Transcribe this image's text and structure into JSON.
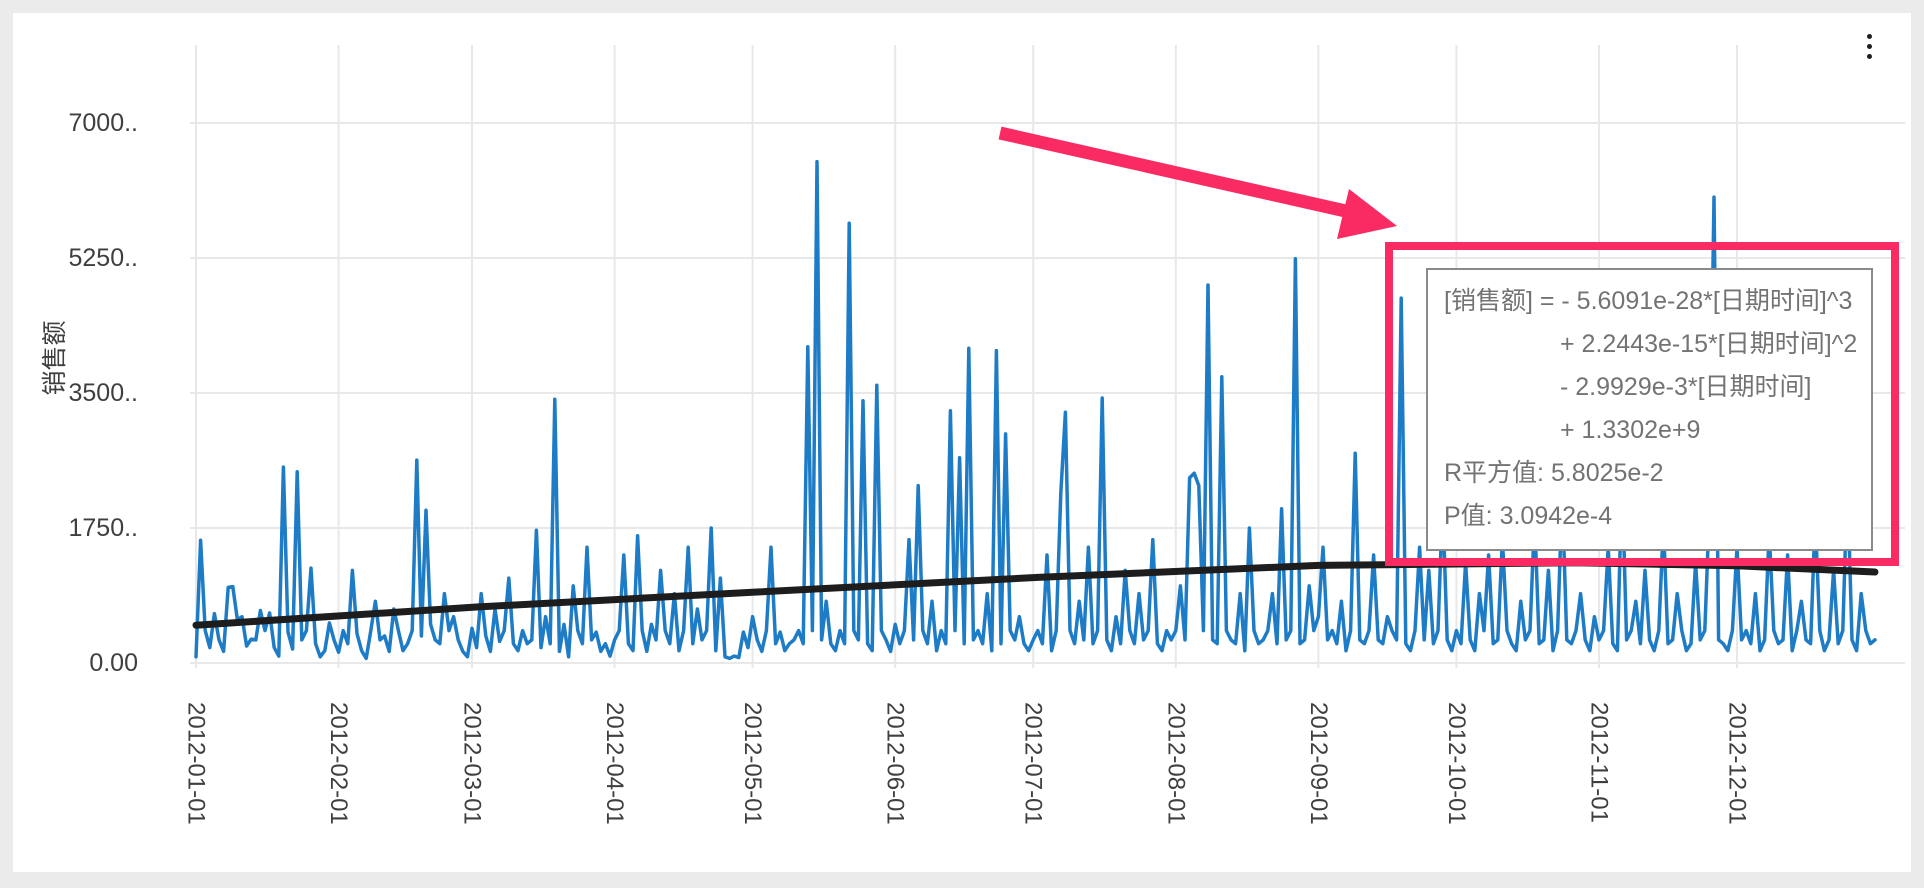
{
  "window": {
    "menu_icon": "kebab-menu-icon"
  },
  "colors": {
    "background": "#ebebeb",
    "card": "#ffffff",
    "grid": "#e8e8e8",
    "axis_text": "#3f3f3f",
    "series_blue": "#1e7cc6",
    "trend_black": "#1d1d1d",
    "callout_pink": "#fa2a62",
    "tooltip_border": "#8a8a8a",
    "tooltip_text": "#737373"
  },
  "chart_data": {
    "type": "line",
    "title": "",
    "xlabel": "",
    "ylabel": "销售额",
    "x_axis": {
      "tick_labels": [
        "2012-01-01",
        "2012-02-01",
        "2012-03-01",
        "2012-04-01",
        "2012-05-01",
        "2012-06-01",
        "2012-07-01",
        "2012-08-01",
        "2012-09-01",
        "2012-10-01",
        "2012-11-01",
        "2012-12-01"
      ],
      "range_days": 366,
      "month_start_day_offsets": [
        0,
        31,
        60,
        91,
        121,
        152,
        182,
        213,
        244,
        274,
        305,
        335
      ]
    },
    "y_axis": {
      "tick_labels": [
        "7000..",
        "5250..",
        "3500..",
        "1750..",
        "0.00"
      ],
      "tick_values": [
        7000,
        5250,
        3500,
        1750,
        0
      ],
      "ylim": [
        0,
        8000
      ],
      "grid": true
    },
    "legend_position": "none",
    "series": [
      {
        "name": "销售额",
        "kind": "daily-line",
        "values": [
          80,
          1590,
          420,
          200,
          640,
          300,
          150,
          980,
          990,
          560,
          600,
          220,
          310,
          300,
          680,
          420,
          650,
          200,
          90,
          2540,
          400,
          180,
          2480,
          300,
          420,
          1230,
          250,
          80,
          160,
          520,
          300,
          140,
          420,
          250,
          1200,
          380,
          160,
          60,
          420,
          800,
          300,
          350,
          150,
          700,
          420,
          160,
          250,
          420,
          2630,
          350,
          1980,
          500,
          300,
          250,
          900,
          420,
          600,
          300,
          150,
          80,
          450,
          200,
          900,
          350,
          150,
          700,
          280,
          420,
          1100,
          250,
          160,
          420,
          250,
          300,
          1720,
          200,
          600,
          250,
          3420,
          150,
          500,
          80,
          1000,
          420,
          250,
          1500,
          300,
          400,
          150,
          250,
          90,
          300,
          420,
          1400,
          250,
          160,
          1650,
          420,
          150,
          500,
          300,
          1200,
          420,
          250,
          900,
          160,
          420,
          1500,
          250,
          700,
          300,
          420,
          1750,
          160,
          1100,
          80,
          60,
          90,
          70,
          400,
          200,
          600,
          300,
          150,
          420,
          1500,
          250,
          400,
          160,
          250,
          300,
          420,
          250,
          4100,
          420,
          6500,
          300,
          800,
          250,
          160,
          420,
          250,
          5700,
          420,
          300,
          3400,
          250,
          160,
          3600,
          420,
          300,
          150,
          500,
          250,
          420,
          1600,
          300,
          2300,
          420,
          250,
          800,
          160,
          420,
          250,
          3270,
          420,
          2660,
          250,
          4080,
          300,
          420,
          250,
          900,
          160,
          4050,
          250,
          2970,
          420,
          300,
          600,
          250,
          160,
          300,
          420,
          250,
          1400,
          160,
          420,
          2200,
          3250,
          420,
          250,
          800,
          300,
          1500,
          250,
          420,
          3435,
          300,
          160,
          600,
          250,
          1200,
          420,
          250,
          900,
          300,
          420,
          1600,
          250,
          160,
          420,
          300,
          420,
          1000,
          300,
          2400,
          2460,
          2300,
          420,
          4900,
          300,
          250,
          3710,
          420,
          300,
          250,
          900,
          160,
          1750,
          420,
          250,
          300,
          420,
          900,
          250,
          2000,
          300,
          420,
          5240,
          250,
          300,
          1000,
          420,
          600,
          1500,
          300,
          420,
          250,
          800,
          160,
          420,
          2720,
          300,
          250,
          420,
          1400,
          300,
          250,
          600,
          420,
          300,
          4730,
          250,
          160,
          420,
          1500,
          300,
          1200,
          250,
          420,
          2100,
          300,
          160,
          420,
          250,
          1300,
          300,
          160,
          900,
          420,
          1400,
          250,
          300,
          1600,
          420,
          250,
          160,
          800,
          300,
          420,
          1900,
          250,
          300,
          1200,
          160,
          420,
          2200,
          300,
          250,
          420,
          900,
          300,
          160,
          600,
          300,
          420,
          1500,
          250,
          160,
          2400,
          300,
          420,
          800,
          250,
          1200,
          300,
          160,
          420,
          1800,
          250,
          300,
          900,
          420,
          160,
          250,
          1300,
          300,
          420,
          2000,
          6040,
          300,
          250,
          160,
          420,
          1500,
          300,
          420,
          250,
          900,
          160,
          300,
          1700,
          420,
          250,
          300,
          1400,
          160,
          420,
          800,
          300,
          250,
          1900,
          420,
          160,
          300,
          1200,
          250,
          420,
          2400,
          300,
          160,
          900,
          420,
          250,
          300
        ]
      },
      {
        "name": "趋势线",
        "kind": "trendline",
        "points_day_value": [
          [
            0,
            490
          ],
          [
            61,
            726
          ],
          [
            122,
            920
          ],
          [
            183,
            1110
          ],
          [
            244,
            1265
          ],
          [
            300,
            1300
          ],
          [
            335,
            1260
          ],
          [
            365,
            1180
          ]
        ]
      }
    ]
  },
  "annotation_box": {
    "formula_lhs": "[销售额] =  ",
    "formula_terms": [
      "- 5.6091e-28*[日期时间]^3",
      "+ 2.2443e-15*[日期时间]^2",
      "- 2.9929e-3*[日期时间]",
      "+ 1.3302e+9"
    ],
    "r_squared": "R平方值: 5.8025e-2",
    "p_value": "P值: 3.0942e-4"
  }
}
